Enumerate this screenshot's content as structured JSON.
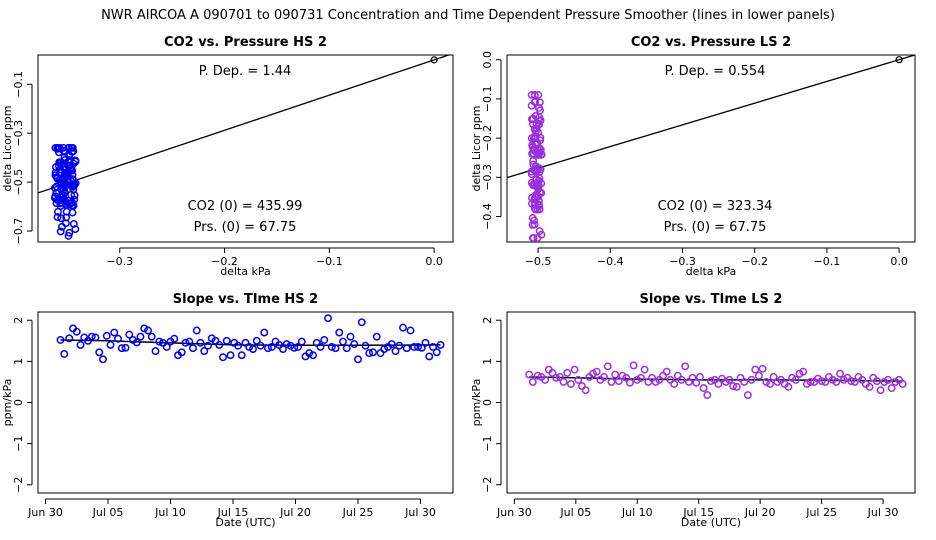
{
  "suptitle": "NWR   AIRCOA A   090701 to 090731   Concentration and Time Dependent Pressure Smoother (lines in lower panels)",
  "colors": {
    "hs": "#0000ee",
    "ls": "#9a30dd",
    "line": "#000000"
  },
  "chart_data": [
    {
      "id": "hs-scatter",
      "type": "scatter",
      "title": "CO2 vs. Pressure HS 2",
      "xlabel": "delta kPa",
      "ylabel": "delta Licor ppm",
      "xlim": [
        -0.378,
        0.018
      ],
      "ylim": [
        -0.745,
        0.02
      ],
      "xticks": [
        -0.3,
        -0.2,
        -0.1,
        0.0
      ],
      "xticklabels": [
        "−0.3",
        "−0.2",
        "−0.1",
        "0.0"
      ],
      "yticks": [
        -0.7,
        -0.5,
        -0.3,
        -0.1
      ],
      "yticklabels": [
        "−0.7",
        "−0.5",
        "−0.3",
        "−0.1"
      ],
      "cloud": {
        "x_center": -0.352,
        "x_spread": 0.01,
        "y_min": -0.72,
        "y_max": -0.36,
        "y_center": -0.5,
        "n": 120
      },
      "fit_line": {
        "slope": 1.44,
        "intercept": 0.0
      },
      "reference_point": [
        0.0,
        0.0
      ],
      "annotations": {
        "p_dep": "P. Dep. =  1.44",
        "co2_0": "CO2 (0) =  435.99",
        "prs_0": "Prs. (0) =  67.75"
      }
    },
    {
      "id": "ls-scatter",
      "type": "scatter",
      "title": "CO2 vs. Pressure LS 2",
      "xlabel": "delta kPa",
      "ylabel": "delta Licor ppm",
      "xlim": [
        -0.543,
        0.022
      ],
      "ylim": [
        -0.465,
        0.012
      ],
      "xticks": [
        -0.5,
        -0.4,
        -0.3,
        -0.2,
        -0.1,
        0.0
      ],
      "xticklabels": [
        "−0.5",
        "−0.4",
        "−0.3",
        "−0.2",
        "−0.1",
        "0.0"
      ],
      "yticks": [
        -0.4,
        -0.3,
        -0.2,
        -0.1,
        0.0
      ],
      "yticklabels": [
        "−0.4",
        "−0.3",
        "−0.2",
        "−0.1",
        "0.0"
      ],
      "cloud": {
        "x_center": -0.502,
        "x_spread": 0.007,
        "y_min": -0.455,
        "y_max": -0.09,
        "y_center": -0.27,
        "n": 110
      },
      "fit_line": {
        "slope": 0.554,
        "intercept": 0.0
      },
      "reference_point": [
        0.0,
        0.0
      ],
      "annotations": {
        "p_dep": "P. Dep. =  0.554",
        "co2_0": "CO2 (0) =  323.34",
        "prs_0": "Prs. (0) =  67.75"
      }
    },
    {
      "id": "hs-slope",
      "type": "scatter",
      "title": "Slope vs. TIme HS 2",
      "xlabel": "Date (UTC)",
      "ylabel": "ppm/kPa",
      "xlim": [
        -0.6,
        32.6
      ],
      "ylim": [
        -2.2,
        2.2
      ],
      "xticks": [
        0,
        5,
        10,
        15,
        20,
        25,
        30
      ],
      "xticklabels": [
        "Jun 30",
        "Jul 05",
        "Jul 10",
        "Jul 15",
        "Jul 20",
        "Jul 25",
        "Jul 30"
      ],
      "yticks": [
        -2,
        -1,
        0,
        1,
        2
      ],
      "yticklabels": [
        "−2",
        "−1",
        "0",
        "1",
        "2"
      ],
      "points": [
        [
          1.2,
          1.52
        ],
        [
          1.5,
          1.18
        ],
        [
          1.9,
          1.56
        ],
        [
          2.2,
          1.8
        ],
        [
          2.5,
          1.72
        ],
        [
          2.8,
          1.4
        ],
        [
          3.1,
          1.58
        ],
        [
          3.4,
          1.5
        ],
        [
          3.7,
          1.6
        ],
        [
          4.0,
          1.58
        ],
        [
          4.3,
          1.22
        ],
        [
          4.6,
          1.05
        ],
        [
          4.9,
          1.62
        ],
        [
          5.2,
          1.4
        ],
        [
          5.5,
          1.7
        ],
        [
          5.8,
          1.55
        ],
        [
          6.1,
          1.32
        ],
        [
          6.4,
          1.33
        ],
        [
          6.7,
          1.65
        ],
        [
          7.0,
          1.52
        ],
        [
          7.3,
          1.46
        ],
        [
          7.6,
          1.6
        ],
        [
          7.9,
          1.8
        ],
        [
          8.2,
          1.75
        ],
        [
          8.5,
          1.6
        ],
        [
          8.8,
          1.25
        ],
        [
          9.1,
          1.48
        ],
        [
          9.4,
          1.45
        ],
        [
          9.7,
          1.35
        ],
        [
          10.0,
          1.48
        ],
        [
          10.3,
          1.55
        ],
        [
          10.6,
          1.15
        ],
        [
          10.9,
          1.22
        ],
        [
          11.2,
          1.45
        ],
        [
          11.5,
          1.48
        ],
        [
          11.8,
          1.32
        ],
        [
          12.1,
          1.75
        ],
        [
          12.4,
          1.45
        ],
        [
          12.7,
          1.25
        ],
        [
          13.0,
          1.38
        ],
        [
          13.3,
          1.56
        ],
        [
          13.6,
          1.5
        ],
        [
          13.9,
          1.4
        ],
        [
          14.2,
          1.1
        ],
        [
          14.5,
          1.5
        ],
        [
          14.8,
          1.15
        ],
        [
          15.1,
          1.45
        ],
        [
          15.4,
          1.38
        ],
        [
          15.7,
          1.15
        ],
        [
          16.0,
          1.45
        ],
        [
          16.3,
          1.35
        ],
        [
          16.6,
          1.3
        ],
        [
          16.9,
          1.5
        ],
        [
          17.2,
          1.38
        ],
        [
          17.5,
          1.7
        ],
        [
          17.8,
          1.32
        ],
        [
          18.1,
          1.35
        ],
        [
          18.4,
          1.48
        ],
        [
          18.7,
          1.4
        ],
        [
          19.0,
          1.3
        ],
        [
          19.3,
          1.42
        ],
        [
          19.6,
          1.38
        ],
        [
          19.9,
          1.33
        ],
        [
          20.2,
          1.35
        ],
        [
          20.5,
          1.48
        ],
        [
          20.8,
          1.12
        ],
        [
          21.1,
          1.2
        ],
        [
          21.4,
          1.15
        ],
        [
          21.7,
          1.45
        ],
        [
          22.0,
          1.35
        ],
        [
          22.3,
          1.52
        ],
        [
          22.6,
          2.05
        ],
        [
          22.9,
          1.35
        ],
        [
          23.2,
          1.32
        ],
        [
          23.5,
          1.7
        ],
        [
          23.8,
          1.48
        ],
        [
          24.1,
          1.32
        ],
        [
          24.4,
          1.6
        ],
        [
          24.7,
          1.42
        ],
        [
          25.0,
          1.05
        ],
        [
          25.3,
          1.95
        ],
        [
          25.6,
          1.38
        ],
        [
          25.9,
          1.2
        ],
        [
          26.2,
          1.22
        ],
        [
          26.5,
          1.6
        ],
        [
          26.8,
          1.2
        ],
        [
          27.1,
          1.3
        ],
        [
          27.4,
          1.35
        ],
        [
          27.7,
          1.42
        ],
        [
          28.0,
          1.25
        ],
        [
          28.3,
          1.38
        ],
        [
          28.6,
          1.82
        ],
        [
          28.9,
          1.32
        ],
        [
          29.2,
          1.75
        ],
        [
          29.5,
          1.35
        ],
        [
          29.8,
          1.35
        ],
        [
          30.1,
          1.33
        ],
        [
          30.4,
          1.45
        ],
        [
          30.7,
          1.12
        ],
        [
          31.0,
          1.35
        ],
        [
          31.3,
          1.22
        ],
        [
          31.6,
          1.4
        ]
      ],
      "smoother": [
        [
          1.2,
          1.52
        ],
        [
          5,
          1.5
        ],
        [
          10,
          1.45
        ],
        [
          15,
          1.4
        ],
        [
          20,
          1.39
        ],
        [
          25,
          1.39
        ],
        [
          31.6,
          1.4
        ]
      ]
    },
    {
      "id": "ls-slope",
      "type": "scatter",
      "title": "Slope vs. TIme LS 2",
      "xlabel": "Date (UTC)",
      "ylabel": "ppm/kPa",
      "xlim": [
        -0.6,
        32.6
      ],
      "ylim": [
        -2.2,
        2.2
      ],
      "xticks": [
        0,
        5,
        10,
        15,
        20,
        25,
        30
      ],
      "xticklabels": [
        "Jun 30",
        "Jul 05",
        "Jul 10",
        "Jul 15",
        "Jul 20",
        "Jul 25",
        "Jul 30"
      ],
      "yticks": [
        -2,
        -1,
        0,
        1,
        2
      ],
      "yticklabels": [
        "−2",
        "−1",
        "0",
        "1",
        "2"
      ],
      "points": [
        [
          1.2,
          0.68
        ],
        [
          1.5,
          0.5
        ],
        [
          1.9,
          0.65
        ],
        [
          2.2,
          0.62
        ],
        [
          2.5,
          0.55
        ],
        [
          2.8,
          0.8
        ],
        [
          3.1,
          0.72
        ],
        [
          3.4,
          0.6
        ],
        [
          3.7,
          0.62
        ],
        [
          4.0,
          0.5
        ],
        [
          4.3,
          0.72
        ],
        [
          4.6,
          0.45
        ],
        [
          4.9,
          0.8
        ],
        [
          5.2,
          0.55
        ],
        [
          5.5,
          0.4
        ],
        [
          5.8,
          0.3
        ],
        [
          6.1,
          0.62
        ],
        [
          6.4,
          0.7
        ],
        [
          6.7,
          0.75
        ],
        [
          7.0,
          0.55
        ],
        [
          7.3,
          0.62
        ],
        [
          7.6,
          0.88
        ],
        [
          7.9,
          0.5
        ],
        [
          8.2,
          0.68
        ],
        [
          8.5,
          0.52
        ],
        [
          8.8,
          0.65
        ],
        [
          9.1,
          0.6
        ],
        [
          9.4,
          0.48
        ],
        [
          9.7,
          0.9
        ],
        [
          10.0,
          0.55
        ],
        [
          10.3,
          0.6
        ],
        [
          10.6,
          0.8
        ],
        [
          10.9,
          0.5
        ],
        [
          11.2,
          0.6
        ],
        [
          11.5,
          0.5
        ],
        [
          11.8,
          0.55
        ],
        [
          12.1,
          0.65
        ],
        [
          12.4,
          0.75
        ],
        [
          12.7,
          0.55
        ],
        [
          13.0,
          0.45
        ],
        [
          13.3,
          0.65
        ],
        [
          13.6,
          0.55
        ],
        [
          13.9,
          0.88
        ],
        [
          14.2,
          0.5
        ],
        [
          14.5,
          0.6
        ],
        [
          14.8,
          0.48
        ],
        [
          15.1,
          0.62
        ],
        [
          15.4,
          0.35
        ],
        [
          15.7,
          0.18
        ],
        [
          16.0,
          0.52
        ],
        [
          16.3,
          0.55
        ],
        [
          16.6,
          0.45
        ],
        [
          16.9,
          0.58
        ],
        [
          17.2,
          0.5
        ],
        [
          17.5,
          0.55
        ],
        [
          17.8,
          0.4
        ],
        [
          18.1,
          0.38
        ],
        [
          18.4,
          0.6
        ],
        [
          18.7,
          0.5
        ],
        [
          19.0,
          0.18
        ],
        [
          19.3,
          0.55
        ],
        [
          19.6,
          0.8
        ],
        [
          19.9,
          0.65
        ],
        [
          20.2,
          0.82
        ],
        [
          20.5,
          0.5
        ],
        [
          20.8,
          0.45
        ],
        [
          21.1,
          0.62
        ],
        [
          21.4,
          0.5
        ],
        [
          21.7,
          0.55
        ],
        [
          22.0,
          0.45
        ],
        [
          22.3,
          0.38
        ],
        [
          22.6,
          0.6
        ],
        [
          22.9,
          0.55
        ],
        [
          23.2,
          0.7
        ],
        [
          23.5,
          0.75
        ],
        [
          23.8,
          0.45
        ],
        [
          24.1,
          0.5
        ],
        [
          24.4,
          0.5
        ],
        [
          24.7,
          0.58
        ],
        [
          25.0,
          0.52
        ],
        [
          25.3,
          0.5
        ],
        [
          25.6,
          0.62
        ],
        [
          25.9,
          0.55
        ],
        [
          26.2,
          0.5
        ],
        [
          26.5,
          0.7
        ],
        [
          26.8,
          0.55
        ],
        [
          27.1,
          0.6
        ],
        [
          27.4,
          0.52
        ],
        [
          27.7,
          0.5
        ],
        [
          28.0,
          0.62
        ],
        [
          28.3,
          0.55
        ],
        [
          28.6,
          0.45
        ],
        [
          28.9,
          0.38
        ],
        [
          29.2,
          0.6
        ],
        [
          29.5,
          0.52
        ],
        [
          29.8,
          0.3
        ],
        [
          30.1,
          0.5
        ],
        [
          30.4,
          0.55
        ],
        [
          30.7,
          0.35
        ],
        [
          31.0,
          0.5
        ],
        [
          31.3,
          0.55
        ],
        [
          31.6,
          0.45
        ]
      ],
      "smoother": [
        [
          1.2,
          0.62
        ],
        [
          5,
          0.6
        ],
        [
          10,
          0.57
        ],
        [
          15,
          0.55
        ],
        [
          20,
          0.55
        ],
        [
          25,
          0.54
        ],
        [
          31.6,
          0.52
        ]
      ]
    }
  ]
}
